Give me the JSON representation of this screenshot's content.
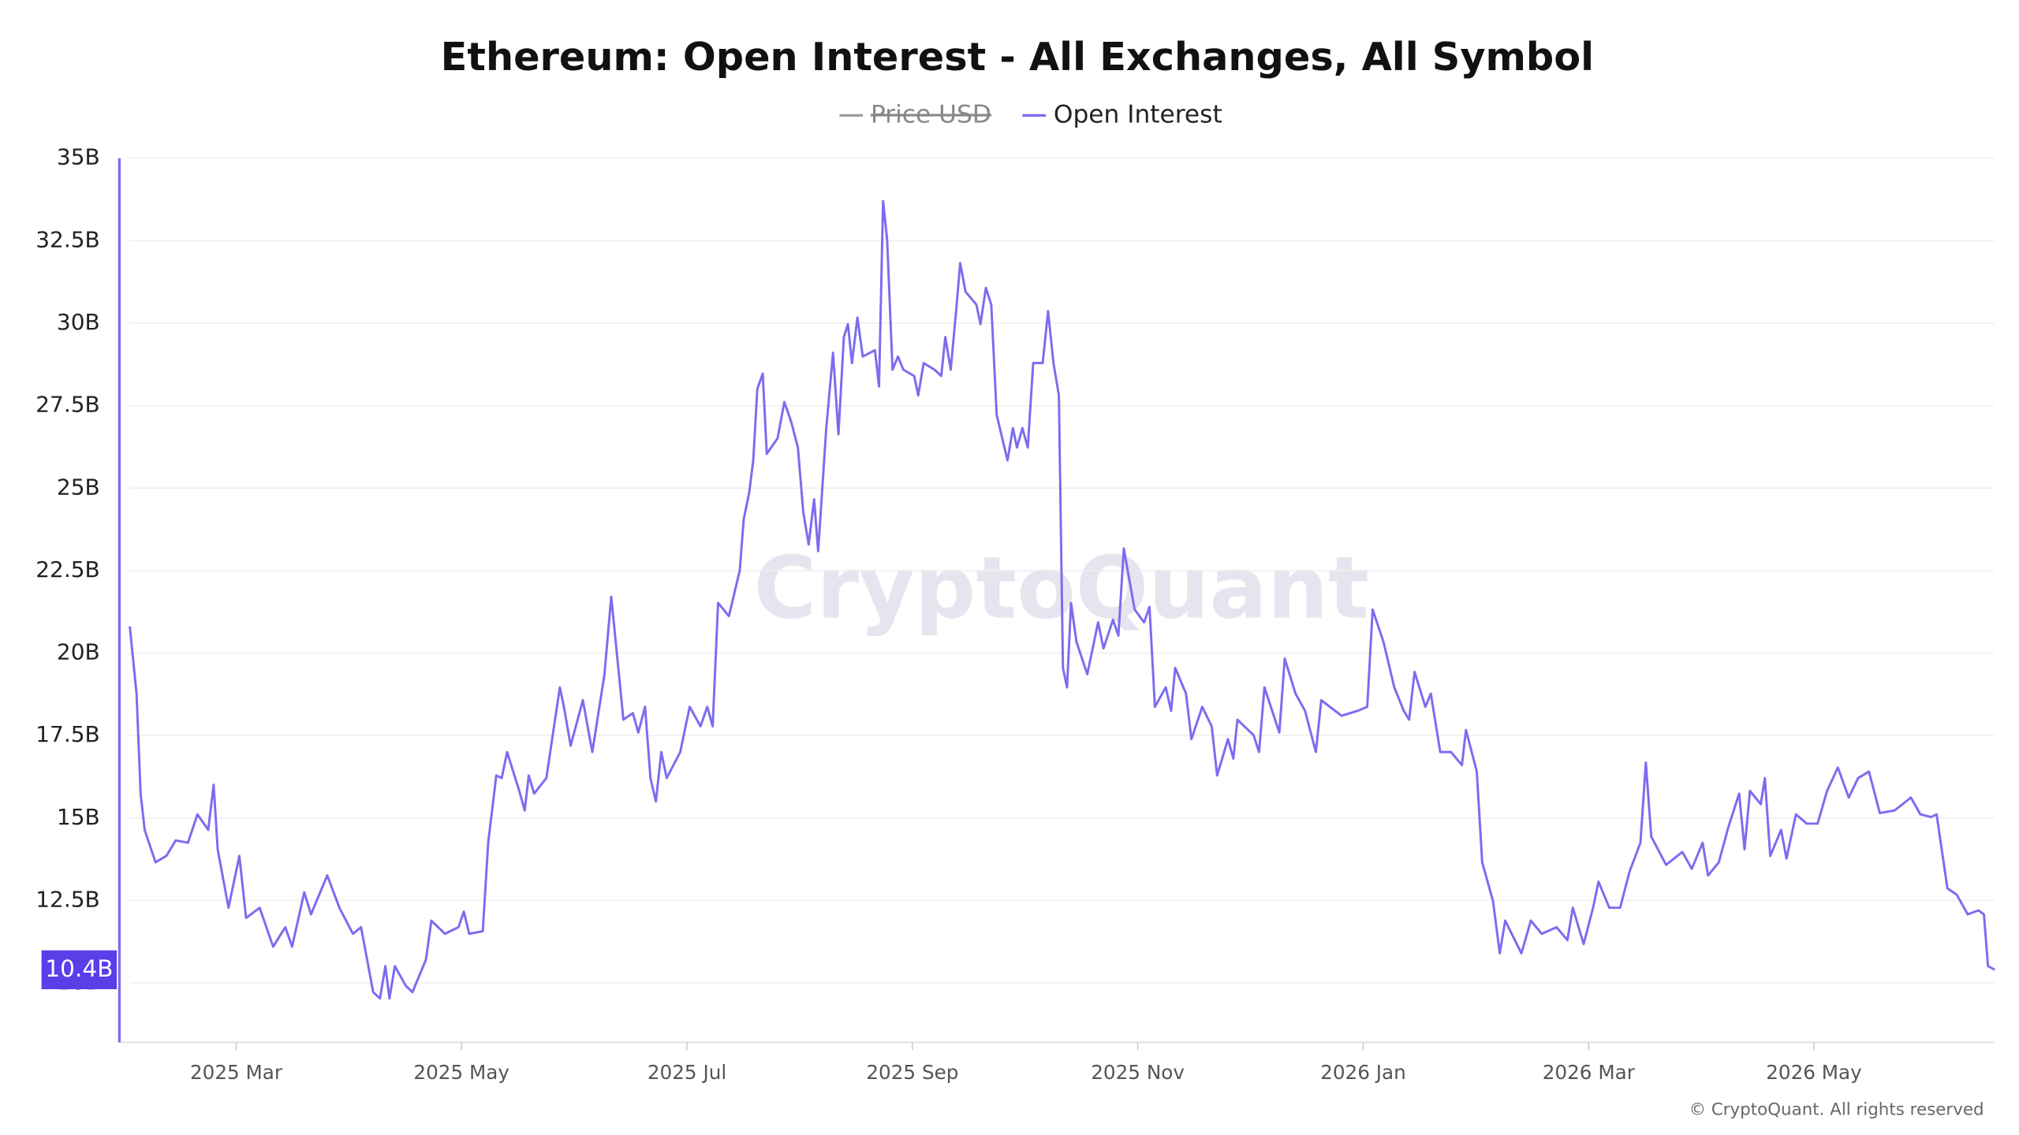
{
  "chart_data": {
    "type": "line",
    "title": "Ethereum: Open Interest - All Exchanges, All Symbol",
    "watermark": "CryptoQuant",
    "footer": "© CryptoQuant. All rights reserved",
    "last_value_label": "10.4B",
    "series": [
      {
        "name": "Price USD",
        "color": "#9e9e9e",
        "hidden": true
      },
      {
        "name": "Open Interest",
        "color": "#7b6cf0",
        "values": [
          20.81,
          18.77,
          15.74,
          14.64,
          13.66,
          13.85,
          14.32,
          14.25,
          15.11,
          14.64,
          16.01,
          14.05,
          12.28,
          13.85,
          11.97,
          12.28,
          11.1,
          11.69,
          11.1,
          12.75,
          12.08,
          13.26,
          12.28,
          11.49,
          11.69,
          9.72,
          9.53,
          10.51,
          9.53,
          10.51,
          9.92,
          9.72,
          10.71,
          11.89,
          11.49,
          11.69,
          12.16,
          11.49,
          11.57,
          14.25,
          16.29,
          16.21,
          17.0,
          15.82,
          15.23,
          16.29,
          15.74,
          16.21,
          18.96,
          18.37,
          17.19,
          18.57,
          17.0,
          19.36,
          21.71,
          17.98,
          18.18,
          17.59,
          18.37,
          16.21,
          15.5,
          17.0,
          16.21,
          17.0,
          18.37,
          17.78,
          18.37,
          17.78,
          21.52,
          21.12,
          22.5,
          24.07,
          24.86,
          25.84,
          28.0,
          28.47,
          26.04,
          26.51,
          27.61,
          27.02,
          26.23,
          24.27,
          23.29,
          24.66,
          23.09,
          26.82,
          29.1,
          26.63,
          29.58,
          29.97,
          28.79,
          30.17,
          28.99,
          29.18,
          28.08,
          33.7,
          32.52,
          28.59,
          28.99,
          28.59,
          28.4,
          27.81,
          28.79,
          28.59,
          28.4,
          29.58,
          28.59,
          30.36,
          31.82,
          30.95,
          30.56,
          29.97,
          31.07,
          30.56,
          27.22,
          25.84,
          26.82,
          26.23,
          26.82,
          26.23,
          28.79,
          28.79,
          30.36,
          28.79,
          27.81,
          19.55,
          18.96,
          21.52,
          20.34,
          19.36,
          20.93,
          20.14,
          21.01,
          20.53,
          23.17,
          21.32,
          20.93,
          21.4,
          18.37,
          18.96,
          18.25,
          19.55,
          18.77,
          17.39,
          18.37,
          17.78,
          16.29,
          17.39,
          16.8,
          17.98,
          17.51,
          17.0,
          18.96,
          17.59,
          19.83,
          18.77,
          18.25,
          17.0,
          18.57,
          18.1,
          18.25,
          18.37,
          21.32,
          20.34,
          18.96,
          18.25,
          17.98,
          19.43,
          18.37,
          18.77,
          17.0,
          17.0,
          16.6,
          17.67,
          16.41,
          13.66,
          12.48,
          10.9,
          11.89,
          10.9,
          11.89,
          11.49,
          11.69,
          11.3,
          12.28,
          11.18,
          12.28,
          13.07,
          12.28,
          12.28,
          13.38,
          14.25,
          16.68,
          14.44,
          13.58,
          13.97,
          13.46,
          14.25,
          13.26,
          13.66,
          14.72,
          15.74,
          14.05,
          15.82,
          15.42,
          16.21,
          13.85,
          14.64,
          13.77,
          15.11,
          14.83,
          14.83,
          15.82,
          16.53,
          15.62,
          16.21,
          16.41,
          15.15,
          15.23,
          15.62,
          15.11,
          15.03,
          15.11,
          12.87,
          12.67,
          12.08,
          12.2,
          12.08,
          10.51,
          10.4
        ]
      }
    ],
    "x": [
      2025.088,
      2025.093,
      2025.096,
      2025.099,
      2025.107,
      2025.115,
      2025.122,
      2025.131,
      2025.138,
      2025.146,
      2025.15,
      2025.153,
      2025.161,
      2025.169,
      2025.174,
      2025.184,
      2025.194,
      2025.203,
      2025.208,
      2025.217,
      2025.222,
      2025.234,
      2025.243,
      2025.253,
      2025.259,
      2025.268,
      2025.273,
      2025.277,
      2025.28,
      2025.284,
      2025.292,
      2025.297,
      2025.307,
      2025.311,
      2025.321,
      2025.331,
      2025.335,
      2025.339,
      2025.349,
      2025.353,
      2025.359,
      2025.363,
      2025.367,
      2025.376,
      2025.38,
      2025.383,
      2025.387,
      2025.396,
      2025.406,
      2025.409,
      2025.414,
      2025.423,
      2025.43,
      2025.439,
      2025.444,
      2025.453,
      2025.46,
      2025.464,
      2025.469,
      2025.473,
      2025.477,
      2025.481,
      2025.485,
      2025.495,
      2025.502,
      2025.51,
      2025.515,
      2025.519,
      2025.523,
      2025.531,
      2025.539,
      2025.542,
      2025.546,
      2025.549,
      2025.552,
      2025.556,
      2025.559,
      2025.567,
      2025.572,
      2025.577,
      2025.582,
      2025.586,
      2025.59,
      2025.594,
      2025.597,
      2025.603,
      2025.608,
      2025.612,
      2025.616,
      2025.619,
      2025.622,
      2025.626,
      2025.63,
      2025.639,
      2025.642,
      2025.645,
      2025.648,
      2025.652,
      2025.656,
      2025.66,
      2025.668,
      2025.671,
      2025.675,
      2025.683,
      2025.688,
      2025.691,
      2025.695,
      2025.699,
      2025.702,
      2025.706,
      2025.714,
      2025.717,
      2025.721,
      2025.725,
      2025.729,
      2025.737,
      2025.741,
      2025.744,
      2025.748,
      2025.752,
      2025.756,
      2025.763,
      2025.767,
      2025.771,
      2025.775,
      2025.778,
      2025.781,
      2025.784,
      2025.788,
      2025.796,
      2025.804,
      2025.808,
      2025.815,
      2025.819,
      2025.823,
      2025.831,
      2025.838,
      2025.842,
      2025.846,
      2025.854,
      2025.858,
      2025.861,
      2025.869,
      2025.873,
      2025.881,
      2025.888,
      2025.892,
      2025.9,
      2025.904,
      2025.907,
      2025.919,
      2025.923,
      2025.927,
      2025.938,
      2025.942,
      2025.95,
      2025.957,
      2025.965,
      2025.969,
      2025.984,
      2025.996,
      2026.003,
      2026.007,
      2026.015,
      2026.023,
      2026.03,
      2026.034,
      2026.038,
      2026.046,
      2026.05,
      2026.057,
      2026.065,
      2026.073,
      2026.076,
      2026.084,
      2026.088,
      2026.096,
      2026.101,
      2026.105,
      2026.117,
      2026.124,
      2026.132,
      2026.143,
      2026.151,
      2026.155,
      2026.163,
      2026.17,
      2026.174,
      2026.182,
      2026.19,
      2026.197,
      2026.205,
      2026.209,
      2026.213,
      2026.224,
      2026.236,
      2026.243,
      2026.251,
      2026.255,
      2026.263,
      2026.27,
      2026.278,
      2026.282,
      2026.286,
      2026.294,
      2026.297,
      2026.301,
      2026.309,
      2026.313,
      2026.32,
      2026.328,
      2026.336,
      2026.343,
      2026.351,
      2026.359,
      2026.366,
      2026.374,
      2026.382,
      2026.393,
      2026.405,
      2026.412,
      2026.42,
      2026.424,
      2026.432,
      2026.439,
      2026.447,
      2026.455,
      2026.459,
      2026.462,
      2026.467
    ],
    "xlim": [
      2025.0803,
      2026.4667
    ],
    "xticks": [
      {
        "value": 2025.1667,
        "label": "2025 Mar"
      },
      {
        "value": 2025.3333,
        "label": "2025 May"
      },
      {
        "value": 2025.5,
        "label": "2025 Jul"
      },
      {
        "value": 2025.6667,
        "label": "2025 Sep"
      },
      {
        "value": 2025.8333,
        "label": "2025 Nov"
      },
      {
        "value": 2026.0,
        "label": "2026 Jan"
      },
      {
        "value": 2026.1667,
        "label": "2026 Mar"
      },
      {
        "value": 2026.3333,
        "label": "2026 May"
      }
    ],
    "ylim": [
      8.2,
      35
    ],
    "yticks": [
      {
        "value": 10,
        "label": "10B"
      },
      {
        "value": 12.5,
        "label": "12.5B"
      },
      {
        "value": 15,
        "label": "15B"
      },
      {
        "value": 17.5,
        "label": "17.5B"
      },
      {
        "value": 20,
        "label": "20B"
      },
      {
        "value": 22.5,
        "label": "22.5B"
      },
      {
        "value": 25,
        "label": "25B"
      },
      {
        "value": 27.5,
        "label": "27.5B"
      },
      {
        "value": 30,
        "label": "30B"
      },
      {
        "value": 32.5,
        "label": "32.5B"
      },
      {
        "value": 35,
        "label": "35B"
      }
    ],
    "grid": true
  }
}
